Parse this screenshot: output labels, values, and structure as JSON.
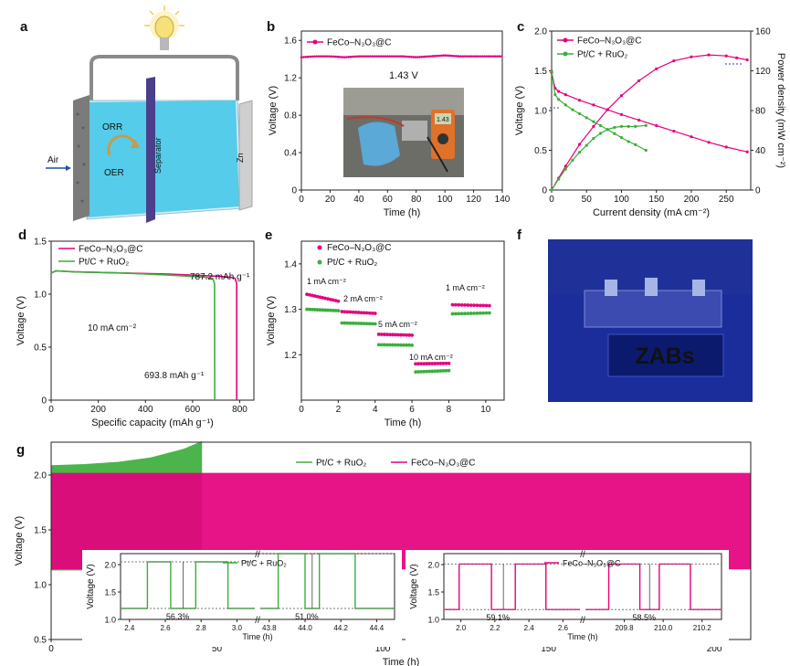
{
  "figure": {
    "panel_labels": [
      "a",
      "b",
      "c",
      "d",
      "e",
      "f",
      "g"
    ]
  },
  "panel_a": {
    "labels": {
      "air": "Air",
      "orr": "ORR",
      "oer": "OER",
      "separator": "Separator",
      "zn": "Zn"
    },
    "colors": {
      "electrolyte": "#3fc6e6",
      "separator": "#4b3f8c",
      "carbon": "#7b7b7b",
      "zinc": "#cfcfcf",
      "wire": "#8a8a8a",
      "bulb": "#f6e07a"
    }
  },
  "panel_b_photo": {
    "label": "1.43 V",
    "display": "1.43"
  },
  "panel_f_photo": {
    "led_text": "ZABs",
    "colors": {
      "bg": "#1a2d9a",
      "led": "#9fd6ff"
    }
  },
  "chart_data": [
    {
      "panel": "b",
      "type": "line",
      "xlabel": "Time (h)",
      "ylabel": "Voltage (V)",
      "xlim": [
        0,
        140
      ],
      "ylim": [
        0,
        1.7
      ],
      "xticks": [
        "0",
        "20",
        "40",
        "60",
        "80",
        "100",
        "120",
        "140"
      ],
      "yticks": [
        "0",
        "0.4",
        "0.8",
        "1.2",
        "1.6"
      ],
      "series": [
        {
          "name": "FeCo–N3O3@C",
          "color": "#e5007e",
          "x": [
            0,
            10,
            20,
            30,
            40,
            50,
            60,
            70,
            80,
            90,
            100,
            110,
            120,
            130,
            140
          ],
          "y": [
            1.42,
            1.43,
            1.43,
            1.42,
            1.43,
            1.43,
            1.43,
            1.43,
            1.42,
            1.43,
            1.44,
            1.43,
            1.43,
            1.43,
            1.43
          ]
        }
      ]
    },
    {
      "panel": "c",
      "type": "line",
      "xlabel": "Current density (mA cm⁻²)",
      "ylabel": "Voltage (V)",
      "y2label": "Power density (mW cm⁻²)",
      "xlim": [
        0,
        285
      ],
      "ylim": [
        0,
        2.0
      ],
      "y2lim": [
        0,
        160
      ],
      "xticks": [
        "0",
        "50",
        "100",
        "150",
        "200",
        "250"
      ],
      "yticks": [
        "0",
        "0.5",
        "1.0",
        "1.5",
        "2.0"
      ],
      "y2ticks": [
        "0",
        "40",
        "80",
        "120",
        "160"
      ],
      "series": [
        {
          "name": "FeCo–N3O3@C",
          "color": "#e5007e",
          "axis": "y",
          "x": [
            0,
            5,
            10,
            20,
            40,
            60,
            80,
            100,
            125,
            150,
            175,
            200,
            225,
            250,
            280
          ],
          "y": [
            1.48,
            1.28,
            1.24,
            1.2,
            1.13,
            1.07,
            1.01,
            0.95,
            0.88,
            0.81,
            0.74,
            0.67,
            0.6,
            0.54,
            0.48
          ]
        },
        {
          "name": "FeCo–N3O3@C",
          "color": "#e5007e",
          "axis": "y2",
          "x": [
            0,
            10,
            20,
            40,
            60,
            80,
            100,
            125,
            150,
            175,
            200,
            225,
            250,
            265,
            280
          ],
          "y": [
            0,
            12,
            24,
            46,
            64,
            81,
            95,
            110,
            122,
            130,
            134,
            136,
            135,
            133,
            131
          ]
        },
        {
          "name": "Pt/C + RuO2",
          "color": "#3cae3c",
          "axis": "y",
          "x": [
            0,
            5,
            10,
            20,
            30,
            40,
            50,
            60,
            70,
            80,
            90,
            100,
            110,
            120,
            135
          ],
          "y": [
            1.5,
            1.2,
            1.14,
            1.07,
            1.01,
            0.96,
            0.91,
            0.86,
            0.81,
            0.76,
            0.71,
            0.66,
            0.61,
            0.57,
            0.5
          ]
        },
        {
          "name": "Pt/C + RuO2",
          "color": "#3cae3c",
          "axis": "y2",
          "x": [
            0,
            10,
            20,
            30,
            40,
            50,
            60,
            70,
            80,
            90,
            100,
            110,
            120,
            135
          ],
          "y": [
            0,
            11,
            21,
            30,
            38,
            45,
            52,
            57,
            61,
            63,
            64,
            64,
            64,
            65
          ]
        }
      ]
    },
    {
      "panel": "d",
      "type": "line",
      "xlabel": "Specific capacity (mAh g⁻¹)",
      "ylabel": "Voltage (V)",
      "xlim": [
        0,
        860
      ],
      "ylim": [
        0,
        1.5
      ],
      "xticks": [
        "0",
        "200",
        "400",
        "600",
        "800"
      ],
      "yticks": [
        "0",
        "0.5",
        "1.0",
        "1.5"
      ],
      "annotations": [
        "10 mA cm⁻²",
        "787.2 mAh g⁻¹",
        "693.8 mAh g⁻¹"
      ],
      "series": [
        {
          "name": "FeCo–N3O3@C",
          "color": "#e5007e",
          "x": [
            0,
            20,
            100,
            300,
            500,
            700,
            760,
            780,
            787,
            787.2
          ],
          "y": [
            1.2,
            1.22,
            1.21,
            1.2,
            1.19,
            1.17,
            1.16,
            1.15,
            1.1,
            0
          ]
        },
        {
          "name": "Pt/C + RuO2",
          "color": "#3cae3c",
          "x": [
            0,
            20,
            100,
            300,
            500,
            650,
            685,
            693,
            693.8
          ],
          "y": [
            1.2,
            1.22,
            1.21,
            1.2,
            1.18,
            1.16,
            1.15,
            1.1,
            0
          ]
        }
      ]
    },
    {
      "panel": "e",
      "type": "scatter",
      "xlabel": "Time (h)",
      "ylabel": "Voltage (V)",
      "xlim": [
        0,
        11
      ],
      "ylim": [
        1.1,
        1.45
      ],
      "xticks": [
        "0",
        "2",
        "4",
        "6",
        "8",
        "10"
      ],
      "yticks": [
        "1.2",
        "1.3",
        "1.4"
      ],
      "annotations": [
        "1 mA cm⁻²",
        "2 mA cm⁻²",
        "5 mA cm⁻²",
        "10 mA cm⁻²",
        "1 mA cm⁻²"
      ],
      "segments": [
        {
          "x": [
            0.3,
            2.0
          ],
          "fe": [
            1.333,
            1.318
          ],
          "pt": [
            1.3,
            1.297
          ]
        },
        {
          "x": [
            2.2,
            4.0
          ],
          "fe": [
            1.295,
            1.291
          ],
          "pt": [
            1.27,
            1.268
          ]
        },
        {
          "x": [
            4.2,
            6.0
          ],
          "fe": [
            1.245,
            1.243
          ],
          "pt": [
            1.222,
            1.221
          ]
        },
        {
          "x": [
            6.2,
            8.0
          ],
          "fe": [
            1.18,
            1.181
          ],
          "pt": [
            1.162,
            1.165
          ]
        },
        {
          "x": [
            8.2,
            10.2
          ],
          "fe": [
            1.31,
            1.308
          ],
          "pt": [
            1.29,
            1.292
          ]
        }
      ],
      "series": [
        {
          "name": "FeCo–N3O3@C",
          "color": "#e5007e"
        },
        {
          "name": "Pt/C + RuO2",
          "color": "#3cae3c"
        }
      ]
    },
    {
      "panel": "g",
      "type": "area",
      "xlabel": "Time (h)",
      "ylabel": "Voltage (V)",
      "xlim": [
        0,
        211
      ],
      "ylim": [
        0.5,
        2.3
      ],
      "xticks": [
        "0",
        "50",
        "100",
        "150",
        "200"
      ],
      "yticks": [
        "0.5",
        "1.0",
        "1.5",
        "2.0"
      ],
      "series": [
        {
          "name": "Pt/C + RuO2",
          "color": "#3cae3c",
          "x": [
            0,
            10,
            20,
            30,
            40,
            45.5
          ],
          "upper": [
            2.09,
            2.1,
            2.12,
            2.16,
            2.24,
            2.31
          ],
          "lower": [
            1.13,
            1.13,
            1.12,
            1.12,
            1.11,
            1.1
          ]
        },
        {
          "name": "FeCo–N3O3@C",
          "color": "#e5007e",
          "x": [
            0,
            100,
            211
          ],
          "upper": [
            2.02,
            2.02,
            2.02
          ],
          "lower": [
            1.14,
            1.14,
            1.14
          ]
        }
      ],
      "insets": [
        {
          "name": "Pt/C + RuO2",
          "color": "#3cae3c",
          "xlabel": "Time (h)",
          "ylabel": "Voltage (V)",
          "ylim": [
            1.0,
            2.2
          ],
          "yticks": [
            "1.0",
            "1.5",
            "2.0"
          ],
          "left": {
            "xlim": [
              2.35,
              3.1
            ],
            "xticks": [
              "2.4",
              "2.6",
              "2.8",
              "3.0"
            ],
            "pct": "56.3%",
            "pulses": [
              [
                2.5,
                2.63
              ],
              [
                2.77,
                2.95
              ]
            ]
          },
          "right": {
            "xlim": [
              43.75,
              44.5
            ],
            "xticks": [
              "43.8",
              "44.0",
              "44.2",
              "44.4"
            ],
            "pct": "51.0%",
            "pulses": [
              [
                43.85,
                44.0
              ],
              [
                44.08,
                44.28
              ]
            ]
          },
          "high": 2.05,
          "low": 1.2,
          "high2": 2.2
        },
        {
          "name": "FeCo–N3O3@C",
          "color": "#e5007e",
          "xlabel": "Time (h)",
          "ylabel": "Voltage (V)",
          "ylim": [
            1.0,
            2.2
          ],
          "yticks": [
            "1.0",
            "1.5",
            "2.0"
          ],
          "left": {
            "xlim": [
              1.9,
              2.7
            ],
            "xticks": [
              "2.0",
              "2.2",
              "2.4",
              "2.6"
            ],
            "pct": "59.1%",
            "pulses": [
              [
                1.99,
                2.18
              ],
              [
                2.32,
                2.5
              ]
            ]
          },
          "right": {
            "xlim": [
              209.6,
              210.3
            ],
            "xticks": [
              "209.8",
              "210.0",
              "210.2"
            ],
            "pct": "58.5%",
            "pulses": [
              [
                209.72,
                209.88
              ],
              [
                209.98,
                210.14
              ]
            ]
          },
          "high": 2.01,
          "low": 1.18,
          "high2": 2.01
        }
      ]
    }
  ]
}
